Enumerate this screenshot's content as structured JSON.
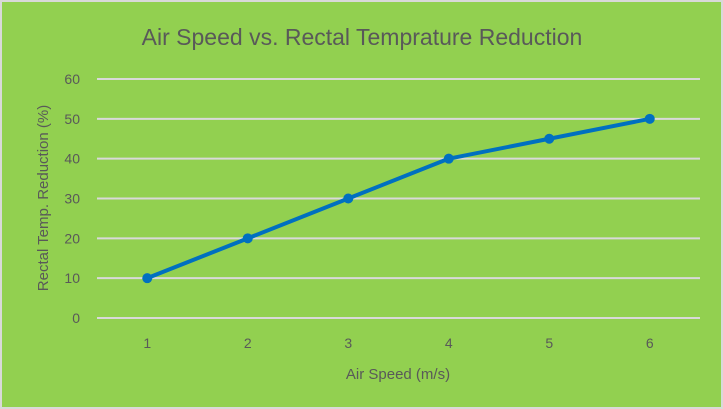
{
  "chart_data": {
    "type": "line",
    "title": "Air Speed vs. Rectal Temprature Reduction",
    "xlabel": "Air Speed (m/s)",
    "ylabel": "Rectal Temp. Reduction (%)",
    "x": [
      1,
      2,
      3,
      4,
      5,
      6
    ],
    "series": [
      {
        "name": "Rectal Temp. Reduction",
        "values": [
          10,
          20,
          30,
          40,
          45,
          50
        ],
        "color": "#0070C0"
      }
    ],
    "ylim": [
      0,
      60
    ],
    "yticks": [
      0,
      10,
      20,
      30,
      40,
      50,
      60
    ],
    "grid": true,
    "legend": "none",
    "background": "#92D050"
  }
}
